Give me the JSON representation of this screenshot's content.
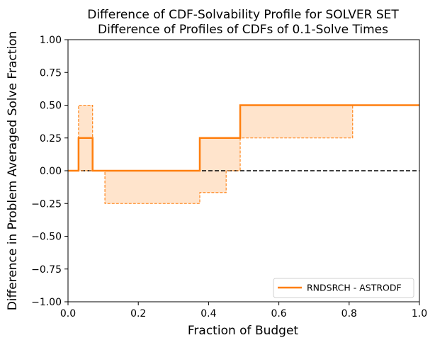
{
  "chart_data": {
    "type": "line",
    "title": "Difference of CDF-Solvability Profile for SOLVER SET",
    "subtitle": "Difference of Profiles of CDFs of 0.1-Solve Times",
    "xlabel": "Fraction of Budget",
    "ylabel": "Difference in Problem Averaged Solve Fraction",
    "xlim": [
      0,
      1
    ],
    "ylim": [
      -1,
      1
    ],
    "x_ticks": [
      0,
      0.2,
      0.4,
      0.6,
      0.8,
      1
    ],
    "x_tick_labels": [
      "0.0",
      "0.2",
      "0.4",
      "0.6",
      "0.8",
      "1.0"
    ],
    "y_ticks": [
      -1,
      -0.75,
      -0.5,
      -0.25,
      0,
      0.25,
      0.5,
      0.75,
      1
    ],
    "y_tick_labels": [
      "−1.00",
      "−0.75",
      "−0.50",
      "−0.25",
      "0.00",
      "0.25",
      "0.50",
      "0.75",
      "1.00"
    ],
    "grid": false,
    "legend_position": "bottom-right",
    "colors": {
      "series": "#ff7f0e",
      "band_fill": "#ffe4cc",
      "zero_line": "#000000"
    },
    "series": [
      {
        "name": "RNDSRCH - ASTRODF",
        "style": "step-solid",
        "x": [
          0,
          0.03,
          0.07,
          0.375,
          0.49,
          1.0
        ],
        "y": [
          0,
          0.25,
          0,
          0.25,
          0.5,
          0.5
        ]
      }
    ],
    "confidence_band": {
      "style": "step-dashed",
      "upper": {
        "x": [
          0,
          0.03,
          0.07,
          0.345,
          0.375,
          0.49,
          0.81,
          1.0
        ],
        "y": [
          0,
          0.5,
          0,
          0,
          0.25,
          0.5,
          0.5,
          0.5
        ]
      },
      "lower": {
        "x": [
          0,
          0.03,
          0.07,
          0.105,
          0.375,
          0.45,
          0.49,
          0.81,
          1.0
        ],
        "y": [
          0,
          0,
          0,
          -0.25,
          -0.1667,
          0,
          0.25,
          0.5,
          0.5
        ]
      }
    },
    "reference_line": {
      "y": 0,
      "style": "dashed"
    }
  }
}
